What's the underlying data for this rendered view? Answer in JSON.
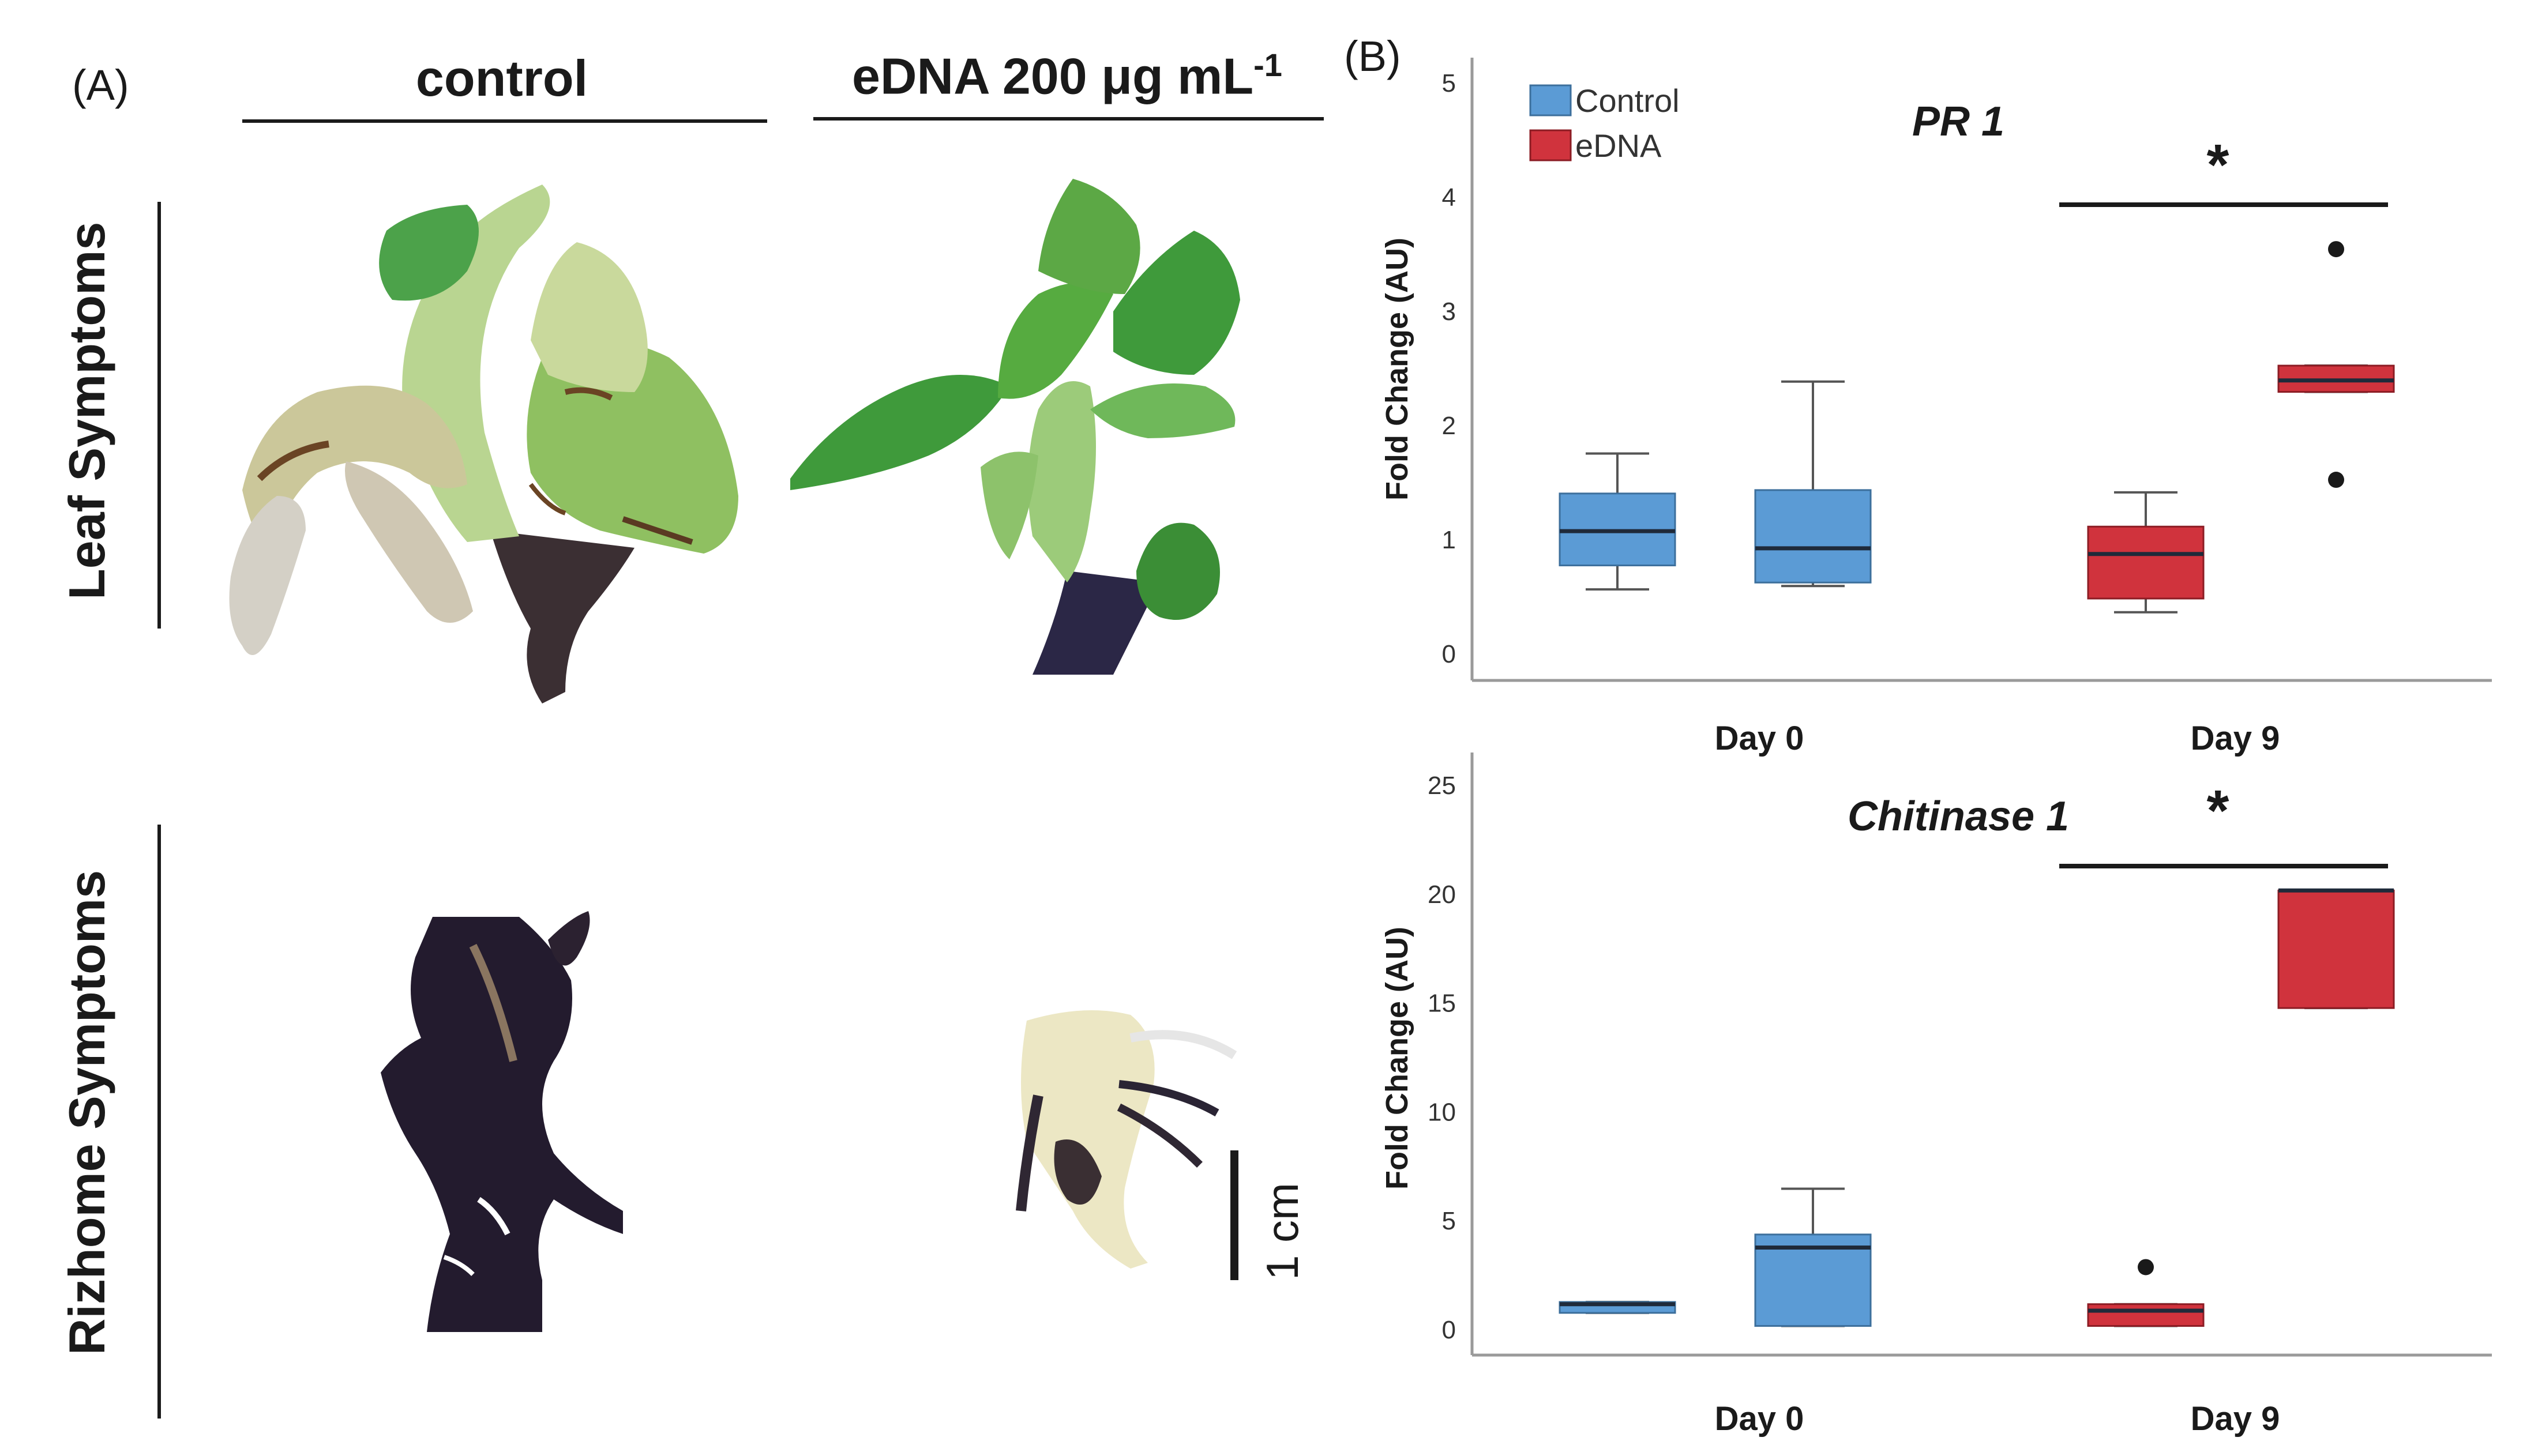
{
  "panel_a": {
    "label": "(A)",
    "columns": [
      {
        "label_main": "control",
        "label_sup": ""
      },
      {
        "label_main": "eDNA 200 μg mL",
        "label_sup": "-1"
      }
    ],
    "rows": [
      "Leaf Symptoms",
      "Rizhome Symptoms"
    ],
    "scale_bar_label": "1 cm"
  },
  "panel_b": {
    "label": "(B)"
  },
  "colors": {
    "control": "#5b9bd5",
    "control_edge": "#3c6f9c",
    "edna": "#d0333d",
    "edna_edge": "#8c1c24",
    "axis": "#9a9a9a",
    "text": "#1a1a1a"
  },
  "chart_data": [
    {
      "type": "box",
      "title": "PR 1",
      "ylabel": "Fold Change (AU)",
      "xlabel": "",
      "ylim": [
        0,
        5
      ],
      "yticks": [
        0,
        1,
        2,
        3,
        4,
        5
      ],
      "categories": [
        "Day 0",
        "Day 9"
      ],
      "legend": {
        "position": "top-left",
        "entries": [
          "Control",
          "eDNA"
        ]
      },
      "significance": [
        {
          "category": "Day 9",
          "label": "*"
        }
      ],
      "series": [
        {
          "name": "Control",
          "boxes": [
            {
              "category": "Day 0",
              "min": 0.57,
              "q1": 0.78,
              "median": 1.08,
              "q3": 1.41,
              "max": 1.76,
              "outliers": []
            },
            {
              "category": "Day 9",
              "min": 0.6,
              "q1": 0.63,
              "median": 0.93,
              "q3": 1.44,
              "max": 2.39,
              "outliers": []
            }
          ]
        },
        {
          "name": "eDNA",
          "boxes": [
            {
              "category": "Day 0",
              "min": 0.37,
              "q1": 0.49,
              "median": 0.88,
              "q3": 1.12,
              "max": 1.42,
              "outliers": []
            },
            {
              "category": "Day 9",
              "min": 2.3,
              "q1": 2.3,
              "median": 2.4,
              "q3": 2.53,
              "max": 2.53,
              "outliers": [
                1.53,
                3.55
              ]
            }
          ]
        }
      ]
    },
    {
      "type": "box",
      "title": "Chitinase 1",
      "ylabel": "Fold Change (AU)",
      "xlabel": "",
      "ylim": [
        0,
        25
      ],
      "yticks": [
        0,
        5,
        10,
        15,
        20,
        25
      ],
      "categories": [
        "Day 0",
        "Day 9"
      ],
      "significance": [
        {
          "category": "Day 9",
          "label": "*"
        }
      ],
      "series": [
        {
          "name": "Control",
          "boxes": [
            {
              "category": "Day 0",
              "min": 0.8,
              "q1": 0.8,
              "median": 1.2,
              "q3": 1.3,
              "max": 1.3,
              "outliers": []
            },
            {
              "category": "Day 9",
              "min": 0.2,
              "q1": 0.2,
              "median": 3.8,
              "q3": 4.4,
              "max": 6.5,
              "outliers": []
            }
          ]
        },
        {
          "name": "eDNA",
          "boxes": [
            {
              "category": "Day 0",
              "min": 0.2,
              "q1": 0.2,
              "median": 0.9,
              "q3": 1.2,
              "max": 1.2,
              "outliers": [
                2.9
              ]
            },
            {
              "category": "Day 9",
              "min": 14.8,
              "q1": 14.8,
              "median": 20.2,
              "q3": 20.2,
              "max": 20.2,
              "outliers": []
            }
          ]
        }
      ]
    }
  ]
}
